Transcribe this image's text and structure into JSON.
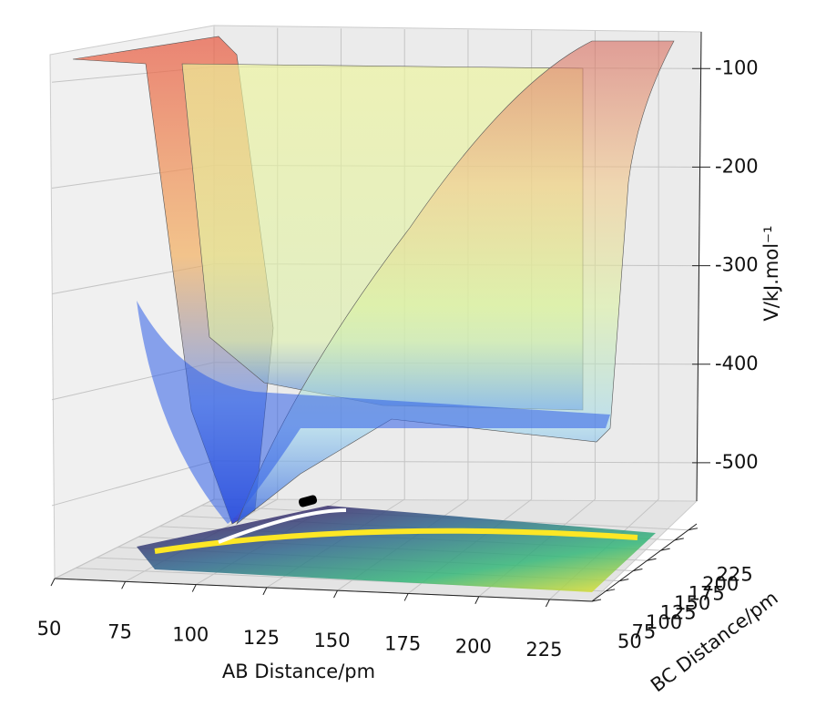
{
  "chart_data": {
    "type": "surface3d",
    "xlabel": "AB Distance/pm",
    "ylabel": "BC Distance/pm",
    "zlabel": "V/kJ.mol⁻¹",
    "xlim": [
      50,
      240
    ],
    "xticks": [
      50,
      75,
      100,
      125,
      150,
      175,
      200,
      225
    ],
    "ylim": [
      50,
      240
    ],
    "yticks": [
      50,
      75,
      100,
      125,
      150,
      175,
      200,
      225
    ],
    "zlim": [
      -550,
      -60
    ],
    "zticks": [
      -100,
      -200,
      -300,
      -400,
      -500
    ],
    "grid": true
  }
}
